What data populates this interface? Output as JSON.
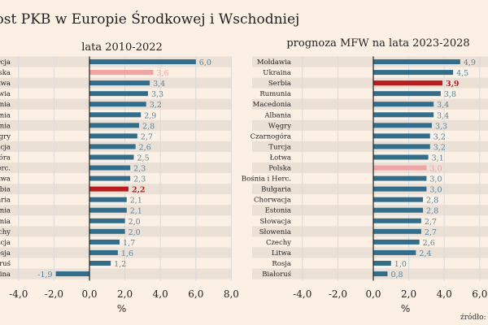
{
  "title": "Wzrost PKB w Europie Środkowej i Wschodniej",
  "source": "źródło: PAP",
  "colors": {
    "background": "#fcefe3",
    "band": "#ebe0d5",
    "bar": "#2f6f8d",
    "poland": "#f2a3a3",
    "serbia": "#c0191c",
    "value_text": "#4f86a3",
    "grid": "#d6dbe0"
  },
  "chart_data": [
    {
      "type": "bar",
      "orientation": "horizontal",
      "title": "lata 2010-2022",
      "xlabel": "%",
      "xlim": [
        -4,
        8
      ],
      "xticks": [
        "-4,0",
        "-2,0",
        "0,0",
        "2,0",
        "4,0",
        "6,0",
        "8,0"
      ],
      "grid": true,
      "categories": [
        "Turcja",
        "Polska",
        "Łotwa",
        "Mołdawia",
        "Macedonia",
        "Rumunia",
        "Albania",
        "Węgry",
        "Chorwacja",
        "Czarnogóra",
        "Bośnia i Herc.",
        "Litwa",
        "Serbia",
        "Bułgaria",
        "Estonia",
        "Słowenia",
        "Czechy",
        "Słowacja",
        "Rosja",
        "Białoruś",
        "Ukraina"
      ],
      "values": [
        6.0,
        3.6,
        3.4,
        3.3,
        3.2,
        2.9,
        2.8,
        2.7,
        2.6,
        2.5,
        2.3,
        2.3,
        2.2,
        2.1,
        2.1,
        2.0,
        2.0,
        1.7,
        1.6,
        1.2,
        -1.9
      ],
      "labels": [
        "6,0",
        "3,6",
        "3,4",
        "3,3",
        "3,2",
        "2,9",
        "2,8",
        "2,7",
        "2,6",
        "2,5",
        "2,3",
        "2,3",
        "2,2",
        "2,1",
        "2,1",
        "2,0",
        "2,0",
        "1,7",
        "1,6",
        "1,2",
        "-1,9"
      ],
      "highlight": {
        "Polska": "poland",
        "Serbia": "serbia"
      }
    },
    {
      "type": "bar",
      "orientation": "horizontal",
      "title": "prognoza MFW na lata 2023-2028",
      "xlabel": "%",
      "xlim": [
        -4,
        8
      ],
      "xticks": [
        "-4,0",
        "-2,0",
        "0,0",
        "2,0",
        "4,0",
        "6,0",
        "8,0"
      ],
      "grid": true,
      "categories": [
        "Mołdawia",
        "Ukraina",
        "Serbia",
        "Rumunia",
        "Macedonia",
        "Albania",
        "Węgry",
        "Czarnogóra",
        "Turcja",
        "Łotwa",
        "Polska",
        "Bośnia i Herc.",
        "Bułgaria",
        "Chorwacja",
        "Estonia",
        "Słowacja",
        "Słowenia",
        "Czechy",
        "Litwa",
        "Rosja",
        "Białoruś"
      ],
      "values": [
        4.9,
        4.5,
        3.9,
        3.8,
        3.4,
        3.4,
        3.3,
        3.2,
        3.2,
        3.1,
        3.0,
        3.0,
        3.0,
        2.8,
        2.8,
        2.7,
        2.7,
        2.6,
        2.4,
        1.0,
        0.8
      ],
      "labels": [
        "4,9",
        "4,5",
        "3,9",
        "3,8",
        "3,4",
        "3,4",
        "3,3",
        "3,2",
        "3,2",
        "3,1",
        "3,0",
        "3,0",
        "3,0",
        "2,8",
        "2,8",
        "2,7",
        "2,7",
        "2,6",
        "2,4",
        "1,0",
        "0,8"
      ],
      "highlight": {
        "Polska": "poland",
        "Serbia": "serbia"
      }
    }
  ]
}
